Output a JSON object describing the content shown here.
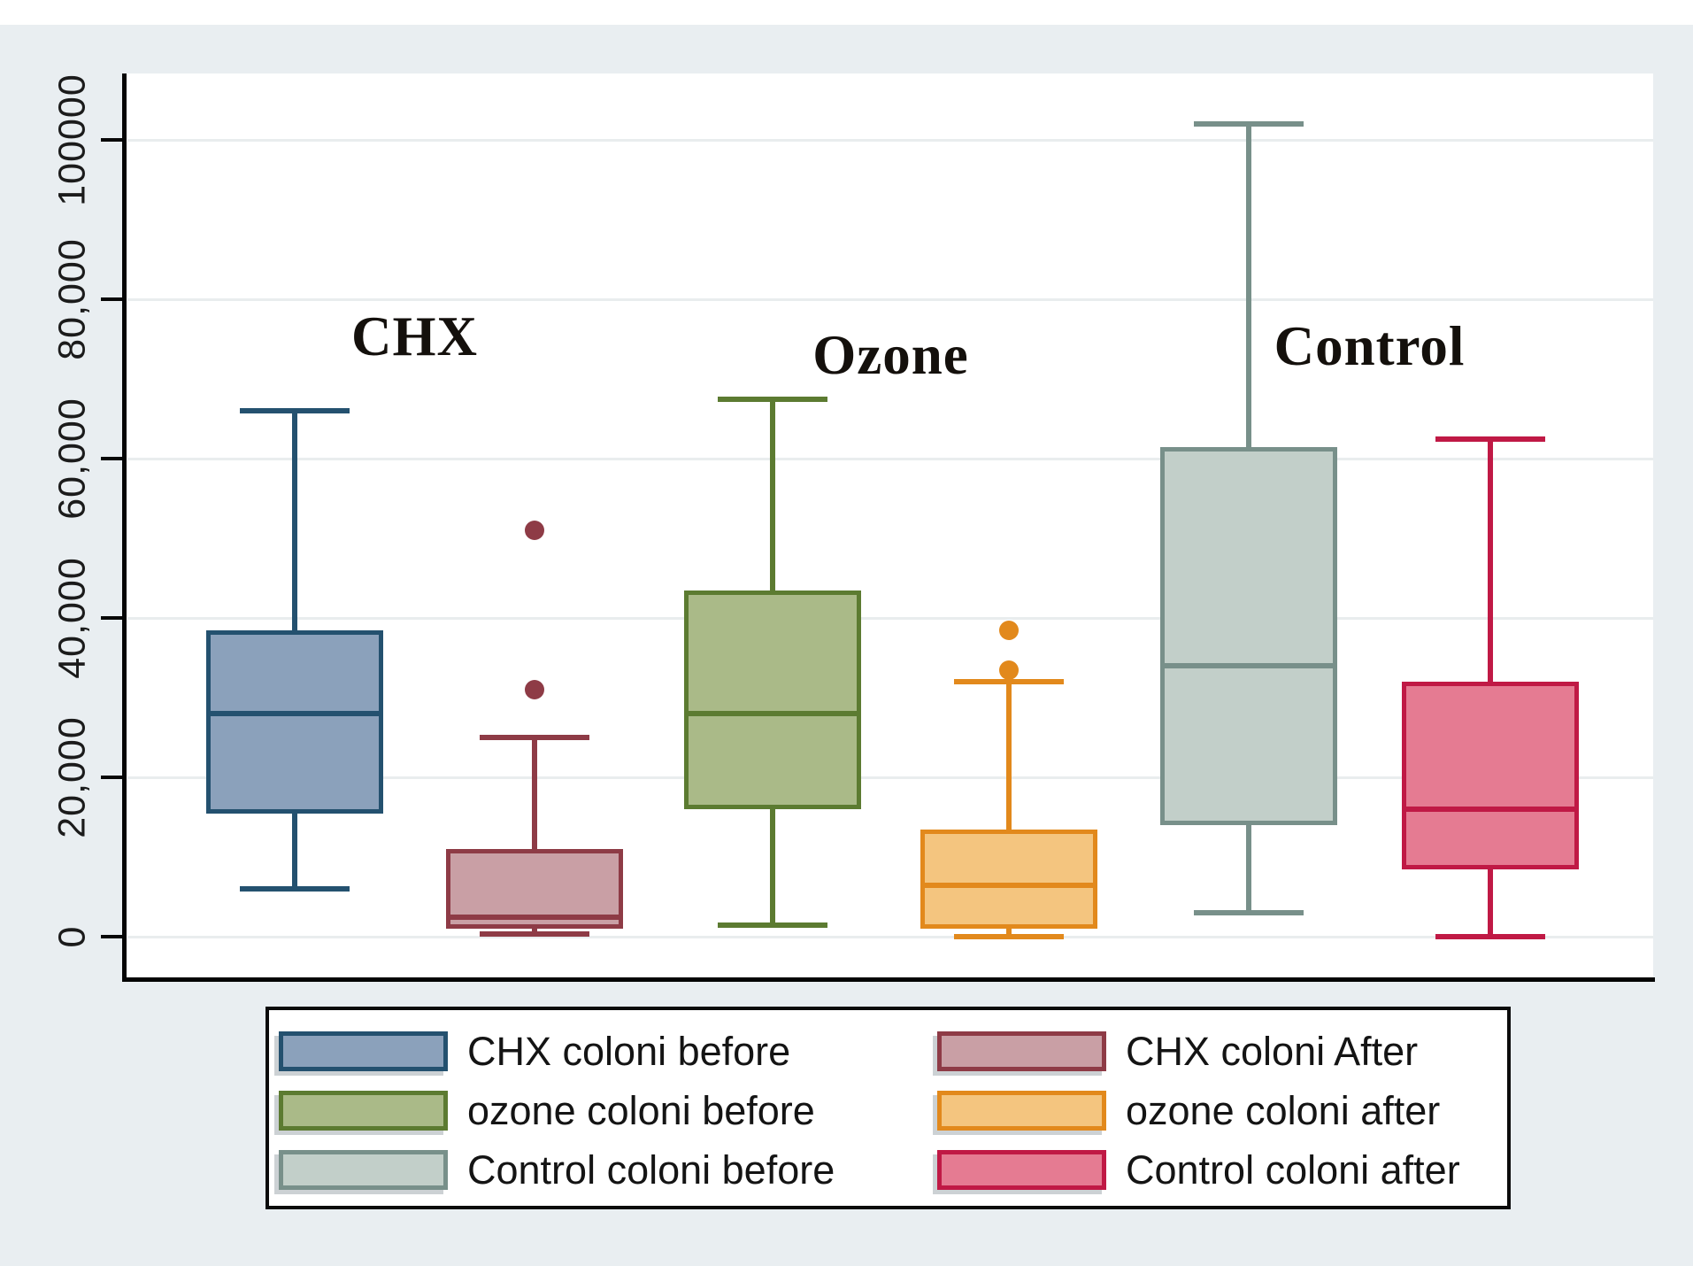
{
  "chart_data": {
    "type": "box",
    "title": "",
    "xlabel": "",
    "ylabel": "",
    "ylim": [
      0,
      108000
    ],
    "grid": true,
    "legend_position": "bottom",
    "yticks": [
      {
        "value": 0,
        "label": "0"
      },
      {
        "value": 20000,
        "label": "20,000"
      },
      {
        "value": 40000,
        "label": "40,000"
      },
      {
        "value": 60000,
        "label": "60,000"
      },
      {
        "value": 80000,
        "label": "80,000"
      },
      {
        "value": 100000,
        "label": "100000"
      }
    ],
    "groups": [
      {
        "label": "CHX"
      },
      {
        "label": "Ozone"
      },
      {
        "label": "Control"
      }
    ],
    "series": [
      {
        "name": "CHX coloni before",
        "group": "CHX",
        "fill": "#8ba1bb",
        "stroke": "#24516f",
        "whislo": 6000,
        "q1": 15500,
        "med": 28000,
        "q3": 38500,
        "whishi": 66000,
        "outliers": []
      },
      {
        "name": "CHX coloni After",
        "group": "CHX",
        "fill": "#c99fa5",
        "stroke": "#8e3b46",
        "whislo": 300,
        "q1": 1000,
        "med": 2500,
        "q3": 11000,
        "whishi": 25000,
        "outliers": [
          31000,
          51000
        ]
      },
      {
        "name": "ozone coloni before",
        "group": "Ozone",
        "fill": "#aaba88",
        "stroke": "#5c7b31",
        "whislo": 1500,
        "q1": 16000,
        "med": 28000,
        "q3": 43500,
        "whishi": 67500,
        "outliers": []
      },
      {
        "name": "ozone coloni after",
        "group": "Ozone",
        "fill": "#f4c57f",
        "stroke": "#e2891c",
        "whislo": 0,
        "q1": 1000,
        "med": 6500,
        "q3": 13500,
        "whishi": 32000,
        "outliers": [
          33500,
          38500
        ]
      },
      {
        "name": "Control coloni before",
        "group": "Control",
        "fill": "#c2cfc9",
        "stroke": "#78908a",
        "whislo": 3000,
        "q1": 14000,
        "med": 34000,
        "q3": 61500,
        "whishi": 102000,
        "outliers": []
      },
      {
        "name": "Control coloni after",
        "group": "Control",
        "fill": "#e57b92",
        "stroke": "#c01945",
        "whislo": 0,
        "q1": 8500,
        "med": 16000,
        "q3": 32000,
        "whishi": 62500,
        "outliers": []
      }
    ]
  }
}
